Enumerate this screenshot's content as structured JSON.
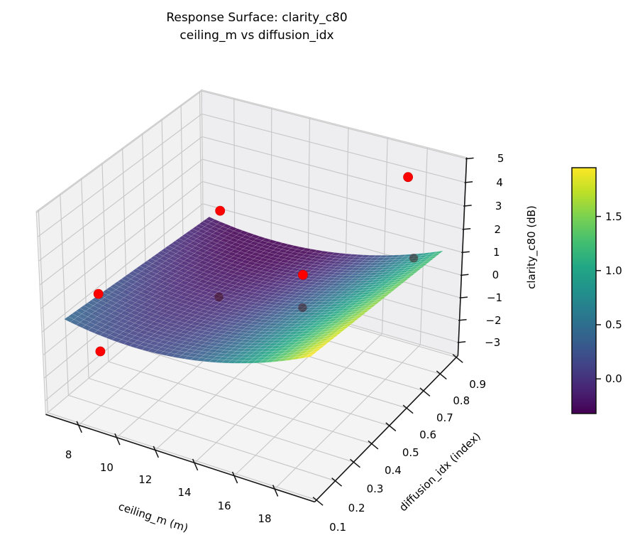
{
  "title": {
    "line1": "Response Surface: clarity_c80",
    "line2": "ceiling_m vs diffusion_idx"
  },
  "axes": {
    "x": {
      "label": "ceiling_m (m)",
      "ticks": [
        "8",
        "10",
        "12",
        "14",
        "16",
        "18"
      ],
      "tick_values": [
        8,
        10,
        12,
        14,
        16,
        18
      ],
      "range": [
        6.25,
        19.95
      ]
    },
    "y": {
      "label": "diffusion_idx (index)",
      "ticks": [
        "0.1",
        "0.2",
        "0.3",
        "0.4",
        "0.5",
        "0.6",
        "0.7",
        "0.8",
        "0.9"
      ],
      "tick_values": [
        0.1,
        0.2,
        0.3,
        0.4,
        0.5,
        0.6,
        0.7,
        0.8,
        0.9
      ],
      "range": [
        0.09,
        0.91
      ]
    },
    "z": {
      "label": "clarity_c80 (dB)",
      "ticks": [
        "−3",
        "−2",
        "−1",
        "0",
        "1",
        "2",
        "3",
        "4",
        "5"
      ],
      "tick_values": [
        -3,
        -2,
        -1,
        0,
        1,
        2,
        3,
        4,
        5
      ],
      "range": [
        -3.6,
        5.05
      ]
    }
  },
  "chart_data": {
    "type": "surface3d_with_scatter",
    "view": {
      "elev_deg": 30,
      "azim_deg": -60,
      "projection": "perspective"
    },
    "surface": {
      "x_name": "ceiling_m",
      "y_name": "diffusion_idx",
      "z_name": "clarity_c80",
      "x_range": [
        7.0,
        19.3
      ],
      "y_range": [
        0.13,
        0.87
      ],
      "grid_n": 40,
      "model": "z = a*(x-10.5)^2 + b*y + c + d*(x-10.5)^2*y",
      "coeffs": {
        "a": 0.02436,
        "b": -0.774,
        "c": 0.2578,
        "d": -0.004167
      },
      "z_min": -0.42,
      "z_max": 2.0,
      "alpha": 0.88
    },
    "scatter_points": [
      {
        "ceiling_m": 18.0,
        "diffusion_idx": 0.8,
        "clarity_c80": 4.5,
        "shaded": false
      },
      {
        "ceiling_m": 9.8,
        "diffusion_idx": 0.65,
        "clarity_c80": 2.2,
        "shaded": false
      },
      {
        "ceiling_m": 7.5,
        "diffusion_idx": 0.25,
        "clarity_c80": 0.8,
        "shaded": false
      },
      {
        "ceiling_m": 7.5,
        "diffusion_idx": 0.25,
        "clarity_c80": -1.7,
        "shaded": false
      },
      {
        "ceiling_m": 15.5,
        "diffusion_idx": 0.5,
        "clarity_c80": 1.8,
        "shaded": false
      },
      {
        "ceiling_m": 11.2,
        "diffusion_idx": 0.5,
        "clarity_c80": -0.2,
        "shaded": true
      },
      {
        "ceiling_m": 15.5,
        "diffusion_idx": 0.5,
        "clarity_c80": 0.4,
        "shaded": true
      },
      {
        "ceiling_m": 18.0,
        "diffusion_idx": 0.85,
        "clarity_c80": 0.7,
        "shaded": true
      }
    ],
    "colormap": "viridis",
    "color_domain": [
      -0.32,
      1.95
    ]
  },
  "colorbar": {
    "ticks": [
      "0.0",
      "0.5",
      "1.0",
      "1.5"
    ],
    "tick_values": [
      0.0,
      0.5,
      1.0,
      1.5
    ]
  },
  "colors": {
    "scatter": "#ff0000",
    "scatter_shaded": "rgba(60,5,10,0.45)",
    "pane_floor": "#f4f4f4",
    "pane_left": "#f1f1f1",
    "pane_right": "#eeeef0",
    "grid": "#c6c6c6",
    "pane_edge": "#cdcdcd",
    "spine": "#151515",
    "text": "#000000",
    "viridis_stops": [
      "#440154",
      "#482475",
      "#414487",
      "#355f8d",
      "#2a788e",
      "#21918c",
      "#22a884",
      "#44bf70",
      "#7ad151",
      "#bddf26",
      "#fde725"
    ]
  }
}
